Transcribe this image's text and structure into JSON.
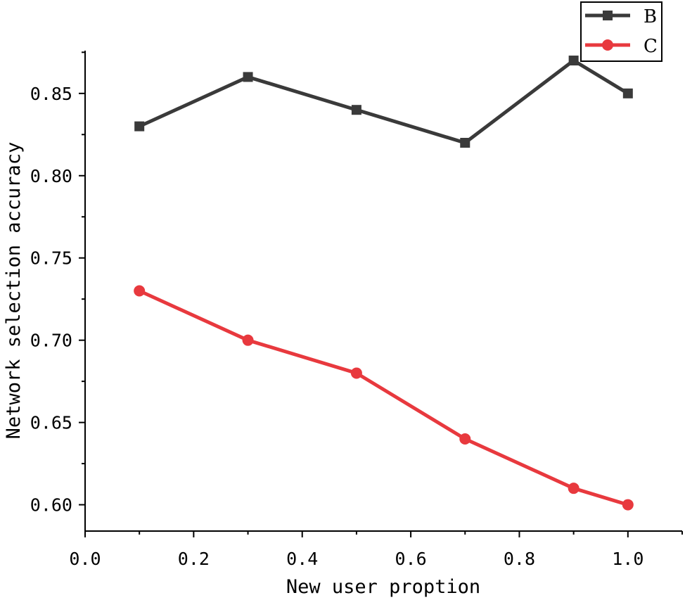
{
  "chart_data": {
    "type": "line",
    "title": "",
    "xlabel": "New user proption",
    "ylabel": "Network selection accuracy",
    "xlim": [
      0.0,
      1.1
    ],
    "ylim": [
      0.584,
      0.876
    ],
    "xticks": [
      0.0,
      0.2,
      0.4,
      0.6,
      0.8,
      1.0
    ],
    "xtick_labels": [
      "0.0",
      "0.2",
      "0.4",
      "0.6",
      "0.8",
      "1.0"
    ],
    "yticks": [
      0.6,
      0.65,
      0.7,
      0.75,
      0.8,
      0.85
    ],
    "ytick_labels": [
      "0.60",
      "0.65",
      "0.70",
      "0.75",
      "0.80",
      "0.85"
    ],
    "grid": false,
    "legend": "top-right",
    "x": [
      0.1,
      0.3,
      0.5,
      0.7,
      0.9,
      1.0
    ],
    "series": [
      {
        "name": "B",
        "values": [
          0.83,
          0.86,
          0.84,
          0.82,
          0.87,
          0.85
        ],
        "color": "#3a3a3a",
        "marker": "square"
      },
      {
        "name": "C",
        "values": [
          0.73,
          0.7,
          0.68,
          0.64,
          0.61,
          0.6
        ],
        "color": "#e8393e",
        "marker": "circle"
      }
    ]
  }
}
